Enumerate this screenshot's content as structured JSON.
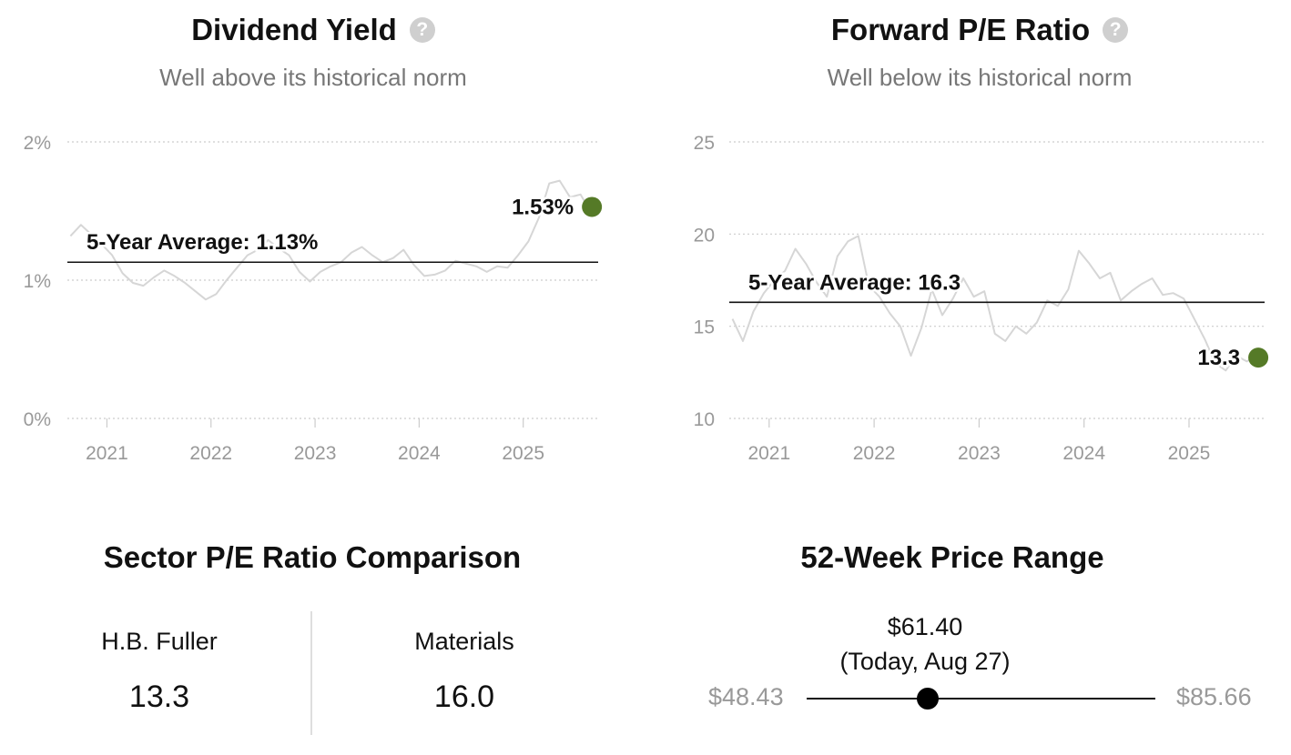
{
  "dividend": {
    "title": "Dividend Yield",
    "help_icon": "question-circle-icon",
    "subtitle": "Well above its historical norm"
  },
  "pe": {
    "title": "Forward P/E Ratio",
    "help_icon": "question-circle-icon",
    "subtitle": "Well below its historical norm"
  },
  "chart_data": [
    {
      "type": "line",
      "title": "Dividend Yield",
      "y_ticks": [
        "0%",
        "1%",
        "2%"
      ],
      "y_tick_values": [
        0,
        1,
        2
      ],
      "ylim": [
        0,
        2
      ],
      "x_ticks": [
        "2021",
        "2022",
        "2023",
        "2024",
        "2025"
      ],
      "x_tick_values": [
        2021,
        2022,
        2023,
        2024,
        2025
      ],
      "xlim": [
        2020.62,
        2025.72
      ],
      "grid": true,
      "series": [
        {
          "x": [
            2020.65,
            2020.75,
            2020.85,
            2020.95,
            2021.05,
            2021.15,
            2021.25,
            2021.35,
            2021.45,
            2021.55,
            2021.65,
            2021.75,
            2021.85,
            2021.95,
            2022.05,
            2022.15,
            2022.25,
            2022.35,
            2022.45,
            2022.55,
            2022.65,
            2022.75,
            2022.85,
            2022.95,
            2023.05,
            2023.15,
            2023.25,
            2023.35,
            2023.45,
            2023.55,
            2023.65,
            2023.75,
            2023.85,
            2023.95,
            2024.05,
            2024.15,
            2024.25,
            2024.35,
            2024.45,
            2024.55,
            2024.65,
            2024.75,
            2024.85,
            2024.95,
            2025.05,
            2025.15,
            2025.25,
            2025.35,
            2025.45,
            2025.55,
            2025.62
          ],
          "y": [
            1.32,
            1.4,
            1.33,
            1.26,
            1.18,
            1.05,
            0.98,
            0.96,
            1.02,
            1.07,
            1.03,
            0.98,
            0.92,
            0.86,
            0.9,
            1.0,
            1.09,
            1.18,
            1.22,
            1.29,
            1.23,
            1.18,
            1.06,
            0.99,
            1.06,
            1.1,
            1.13,
            1.2,
            1.24,
            1.18,
            1.13,
            1.16,
            1.22,
            1.11,
            1.03,
            1.04,
            1.07,
            1.14,
            1.12,
            1.1,
            1.06,
            1.1,
            1.09,
            1.18,
            1.28,
            1.45,
            1.7,
            1.72,
            1.6,
            1.62,
            1.53
          ]
        }
      ],
      "average_label": "5-Year Average: 1.13%",
      "average_value": 1.13,
      "current_label": "1.53%",
      "current_x": 2025.66,
      "current_value": 1.53,
      "colors": {
        "line": "#d6d6d6",
        "marker": "#557a27",
        "grid": "#cccccc"
      }
    },
    {
      "type": "line",
      "title": "Forward P/E Ratio",
      "y_ticks": [
        "10",
        "15",
        "20",
        "25"
      ],
      "y_tick_values": [
        10,
        15,
        20,
        25
      ],
      "ylim": [
        10,
        25
      ],
      "x_ticks": [
        "2021",
        "2022",
        "2023",
        "2024",
        "2025"
      ],
      "x_tick_values": [
        2021,
        2022,
        2023,
        2024,
        2025
      ],
      "xlim": [
        2020.62,
        2025.72
      ],
      "grid": true,
      "series": [
        {
          "x": [
            2020.65,
            2020.75,
            2020.85,
            2020.95,
            2021.05,
            2021.15,
            2021.25,
            2021.35,
            2021.45,
            2021.55,
            2021.65,
            2021.75,
            2021.85,
            2021.95,
            2022.05,
            2022.15,
            2022.25,
            2022.35,
            2022.45,
            2022.55,
            2022.65,
            2022.75,
            2022.85,
            2022.95,
            2023.05,
            2023.15,
            2023.25,
            2023.35,
            2023.45,
            2023.55,
            2023.65,
            2023.75,
            2023.85,
            2023.95,
            2024.05,
            2024.15,
            2024.25,
            2024.35,
            2024.45,
            2024.55,
            2024.65,
            2024.75,
            2024.85,
            2024.95,
            2025.05,
            2025.15,
            2025.25,
            2025.35,
            2025.45,
            2025.55,
            2025.62
          ],
          "y": [
            15.4,
            14.2,
            15.8,
            16.8,
            17.5,
            18.0,
            19.2,
            18.4,
            17.4,
            16.6,
            18.8,
            19.6,
            19.9,
            17.2,
            16.6,
            15.7,
            15.0,
            13.4,
            14.9,
            17.0,
            15.6,
            16.5,
            17.6,
            16.6,
            16.9,
            14.6,
            14.2,
            15.0,
            14.6,
            15.2,
            16.4,
            16.1,
            17.0,
            19.1,
            18.4,
            17.6,
            17.9,
            16.4,
            16.9,
            17.3,
            17.6,
            16.7,
            16.8,
            16.5,
            15.4,
            14.3,
            13.0,
            12.6,
            13.4,
            13.1,
            13.3
          ]
        }
      ],
      "average_label": "5-Year Average: 16.3",
      "average_value": 16.3,
      "current_label": "13.3",
      "current_x": 2025.66,
      "current_value": 13.3,
      "colors": {
        "line": "#d6d6d6",
        "marker": "#557a27",
        "grid": "#cccccc"
      }
    }
  ],
  "sector": {
    "title": "Sector P/E Ratio Comparison",
    "company_name": "H.B. Fuller",
    "company_value": "13.3",
    "sector_name": "Materials",
    "sector_value": "16.0"
  },
  "price_range": {
    "title": "52-Week Price Range",
    "low": "$48.43",
    "high": "$85.66",
    "current_price": "$61.40",
    "current_note": "(Today, Aug 27)",
    "low_value": 48.43,
    "high_value": 85.66,
    "current_value": 61.4
  }
}
